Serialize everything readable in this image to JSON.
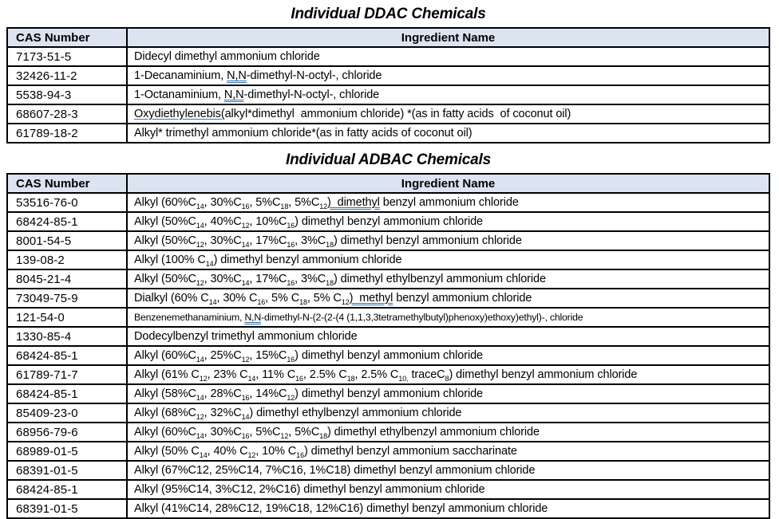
{
  "colors": {
    "header_fill": "#dce4f1",
    "border": "#000000",
    "grammar_underline_blue": "#2e75b6"
  },
  "tables": [
    {
      "title": "Individual DDAC Chemicals",
      "columns": [
        "CAS Number",
        "Ingredient Name"
      ],
      "rows": [
        {
          "cas": "7173-51-5",
          "name": "Didecyl dimethyl ammonium chloride"
        },
        {
          "cas": "32426-11-2",
          "name": "1-Decanaminium, «N,N»-dimethyl-N-octyl-, chloride"
        },
        {
          "cas": "5538-94-3",
          "name": "1-Octanaminium, «N,N»-dimethyl-N-octyl-, chloride"
        },
        {
          "cas": "68607-28-3",
          "name": "‹Oxydiethylenebis(›alkyl*dimethyl  ammonium chloride) *(as in fatty acids  of coconut oil)"
        },
        {
          "cas": "61789-18-2",
          "name": "Alkyl* trimethyl ammonium chloride*(as in fatty acids of coconut oil)"
        }
      ]
    },
    {
      "title": "Individual ADBAC Chemicals",
      "columns": [
        "CAS Number",
        "Ingredient Name"
      ],
      "rows": [
        {
          "cas": "53516-76-0",
          "name": "Alkyl (60%C~14~, 30%C~16~, 5%C~18~, 5%C~12~«)  dimethyl» benzyl ammonium chloride"
        },
        {
          "cas": "68424-85-1",
          "name": "Alkyl (50%C~14~, 40%C~12~, 10%C~16~) dimethyl benzyl ammonium chloride"
        },
        {
          "cas": "8001-54-5",
          "name": "Alkyl (50%C~12~, 30%C~14~, 17%C~16~, 3%C~18~) dimethyl benzyl ammonium chloride"
        },
        {
          "cas": "139-08-2",
          "name": "Alkyl (100% C~14~) dimethyl benzyl ammonium chloride"
        },
        {
          "cas": "8045-21-4",
          "name": "Alkyl (50%C~12~, 30%C~14~, 17%C~16~, 3%C~18~) dimethyl ethylbenzyl ammonium chloride"
        },
        {
          "cas": "73049-75-9",
          "name": "Dialkyl (60% C~14~, 30% C~16~, 5% C~18~, 5% C~12~«)  methyl» benzyl ammonium chloride"
        },
        {
          "cas": "121-54-0",
          "name": "Benzenemethanaminium, «N,N»-dimethyl-N-(2-(2-(4 (1,1,3,3tetramethylbutyl)phenoxy)ethoxy)ethyl)-, chloride"
        },
        {
          "cas": "1330-85-4",
          "name": "Dodecylbenzyl trimethyl ammonium chloride"
        },
        {
          "cas": "68424-85-1",
          "name": "Alkyl (60%C~14~, 25%C~12~, 15%C~16~) dimethyl benzyl ammonium chloride"
        },
        {
          "cas": "61789-71-7",
          "name": "Alkyl (61% C~12~, 23% C~14~, 11% C~16~, 2.5% C~18~, 2.5% C~10,~ traceC~8~) dimethyl benzyl ammonium chloride"
        },
        {
          "cas": "68424-85-1",
          "name": "Alkyl (58%C~14~, 28%C~16~, 14%C~12~) dimethyl benzyl ammonium chloride"
        },
        {
          "cas": "85409-23-0",
          "name": "Alkyl (68%C~12~, 32%C~14~) dimethyl ethylbenzyl ammonium chloride"
        },
        {
          "cas": "68956-79-6",
          "name": "Alkyl (60%C~14~, 30%C~16~, 5%C~12~, 5%C~18~) dimethyl ethylbenzyl ammonium chloride"
        },
        {
          "cas": "68989-01-5",
          "name": "Alkyl (50% C~14~, 40% C~12~, 10% C~16~) dimethyl benzyl ammonium saccharinate"
        },
        {
          "cas": "68391-01-5",
          "name": "Alkyl (67%C12, 25%C14, 7%C16, 1%C18) dimethyl benzyl ammonium chloride"
        },
        {
          "cas": "68424-85-1",
          "name": "Alkyl (95%C14, 3%C12, 2%C16) dimethyl benzyl ammonium chloride"
        },
        {
          "cas": "68391-01-5",
          "name": "Alkyl (41%C14, 28%C12, 19%C18, 12%C16) dimethyl benzyl ammonium chloride"
        }
      ]
    }
  ]
}
